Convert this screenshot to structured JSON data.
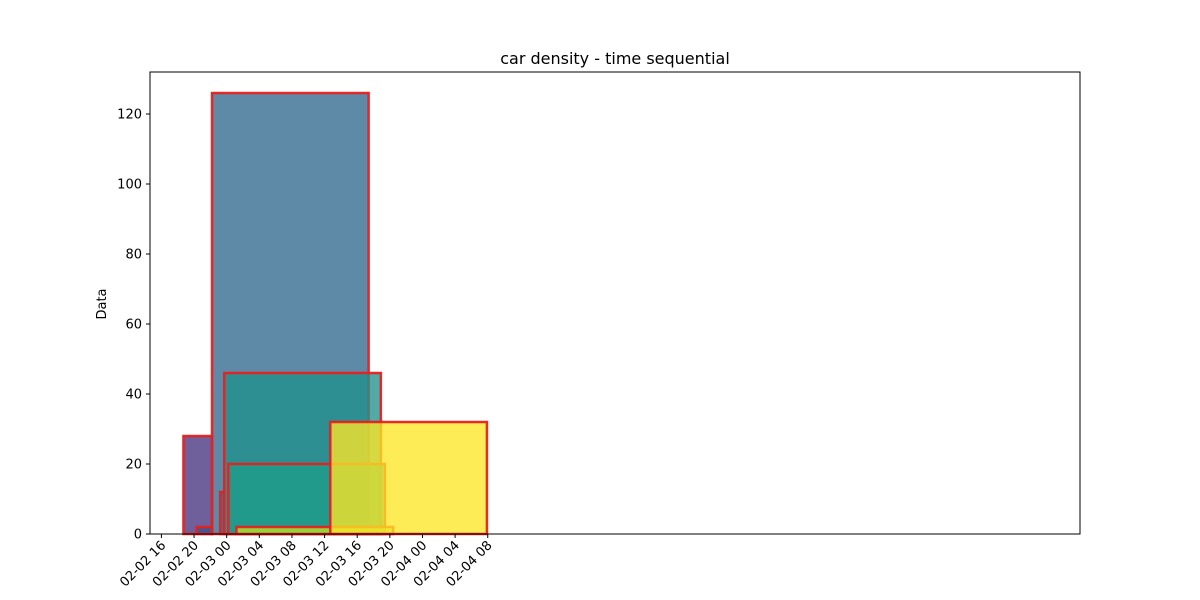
{
  "chart_data": {
    "type": "bar",
    "title": "car density - time sequential",
    "xlabel": "",
    "ylabel": "Data",
    "x_unit": "hours since 2020-02-02 00:00",
    "xlim": [
      14.6,
      128.6
    ],
    "ylim": [
      0,
      132
    ],
    "x_ticks": [
      {
        "value": 16,
        "label": "02-02 16"
      },
      {
        "value": 20,
        "label": "02-02 20"
      },
      {
        "value": 24,
        "label": "02-03 00"
      },
      {
        "value": 28,
        "label": "02-03 04"
      },
      {
        "value": 32,
        "label": "02-03 08"
      },
      {
        "value": 36,
        "label": "02-03 12"
      },
      {
        "value": 40,
        "label": "02-03 16"
      },
      {
        "value": 44,
        "label": "02-03 20"
      },
      {
        "value": 48,
        "label": "02-04 00"
      },
      {
        "value": 52,
        "label": "02-04 04"
      },
      {
        "value": 56,
        "label": "02-04 08"
      }
    ],
    "y_ticks": [
      0,
      20,
      40,
      60,
      80,
      100,
      120
    ],
    "edge_color": "#e8201e",
    "bars": [
      {
        "start": 15.8,
        "end": 18.5,
        "value": 0,
        "color": "#440154"
      },
      {
        "start": 18.7,
        "end": 22.2,
        "value": 28,
        "color": "#46327e"
      },
      {
        "start": 20.3,
        "end": 22.2,
        "value": 2,
        "color": "#3b528b"
      },
      {
        "start": 22.2,
        "end": 41.4,
        "value": 126,
        "color": "#31688e"
      },
      {
        "start": 23.2,
        "end": 23.7,
        "value": 12,
        "color": "#2c728e"
      },
      {
        "start": 23.7,
        "end": 42.9,
        "value": 46,
        "color": "#21918c"
      },
      {
        "start": 24.2,
        "end": 43.4,
        "value": 20,
        "color": "#1f9e89"
      },
      {
        "start": 25.2,
        "end": 44.4,
        "value": 2,
        "color": "#bddf26"
      },
      {
        "start": 36.7,
        "end": 55.9,
        "value": 32,
        "color": "#fde725"
      }
    ]
  }
}
